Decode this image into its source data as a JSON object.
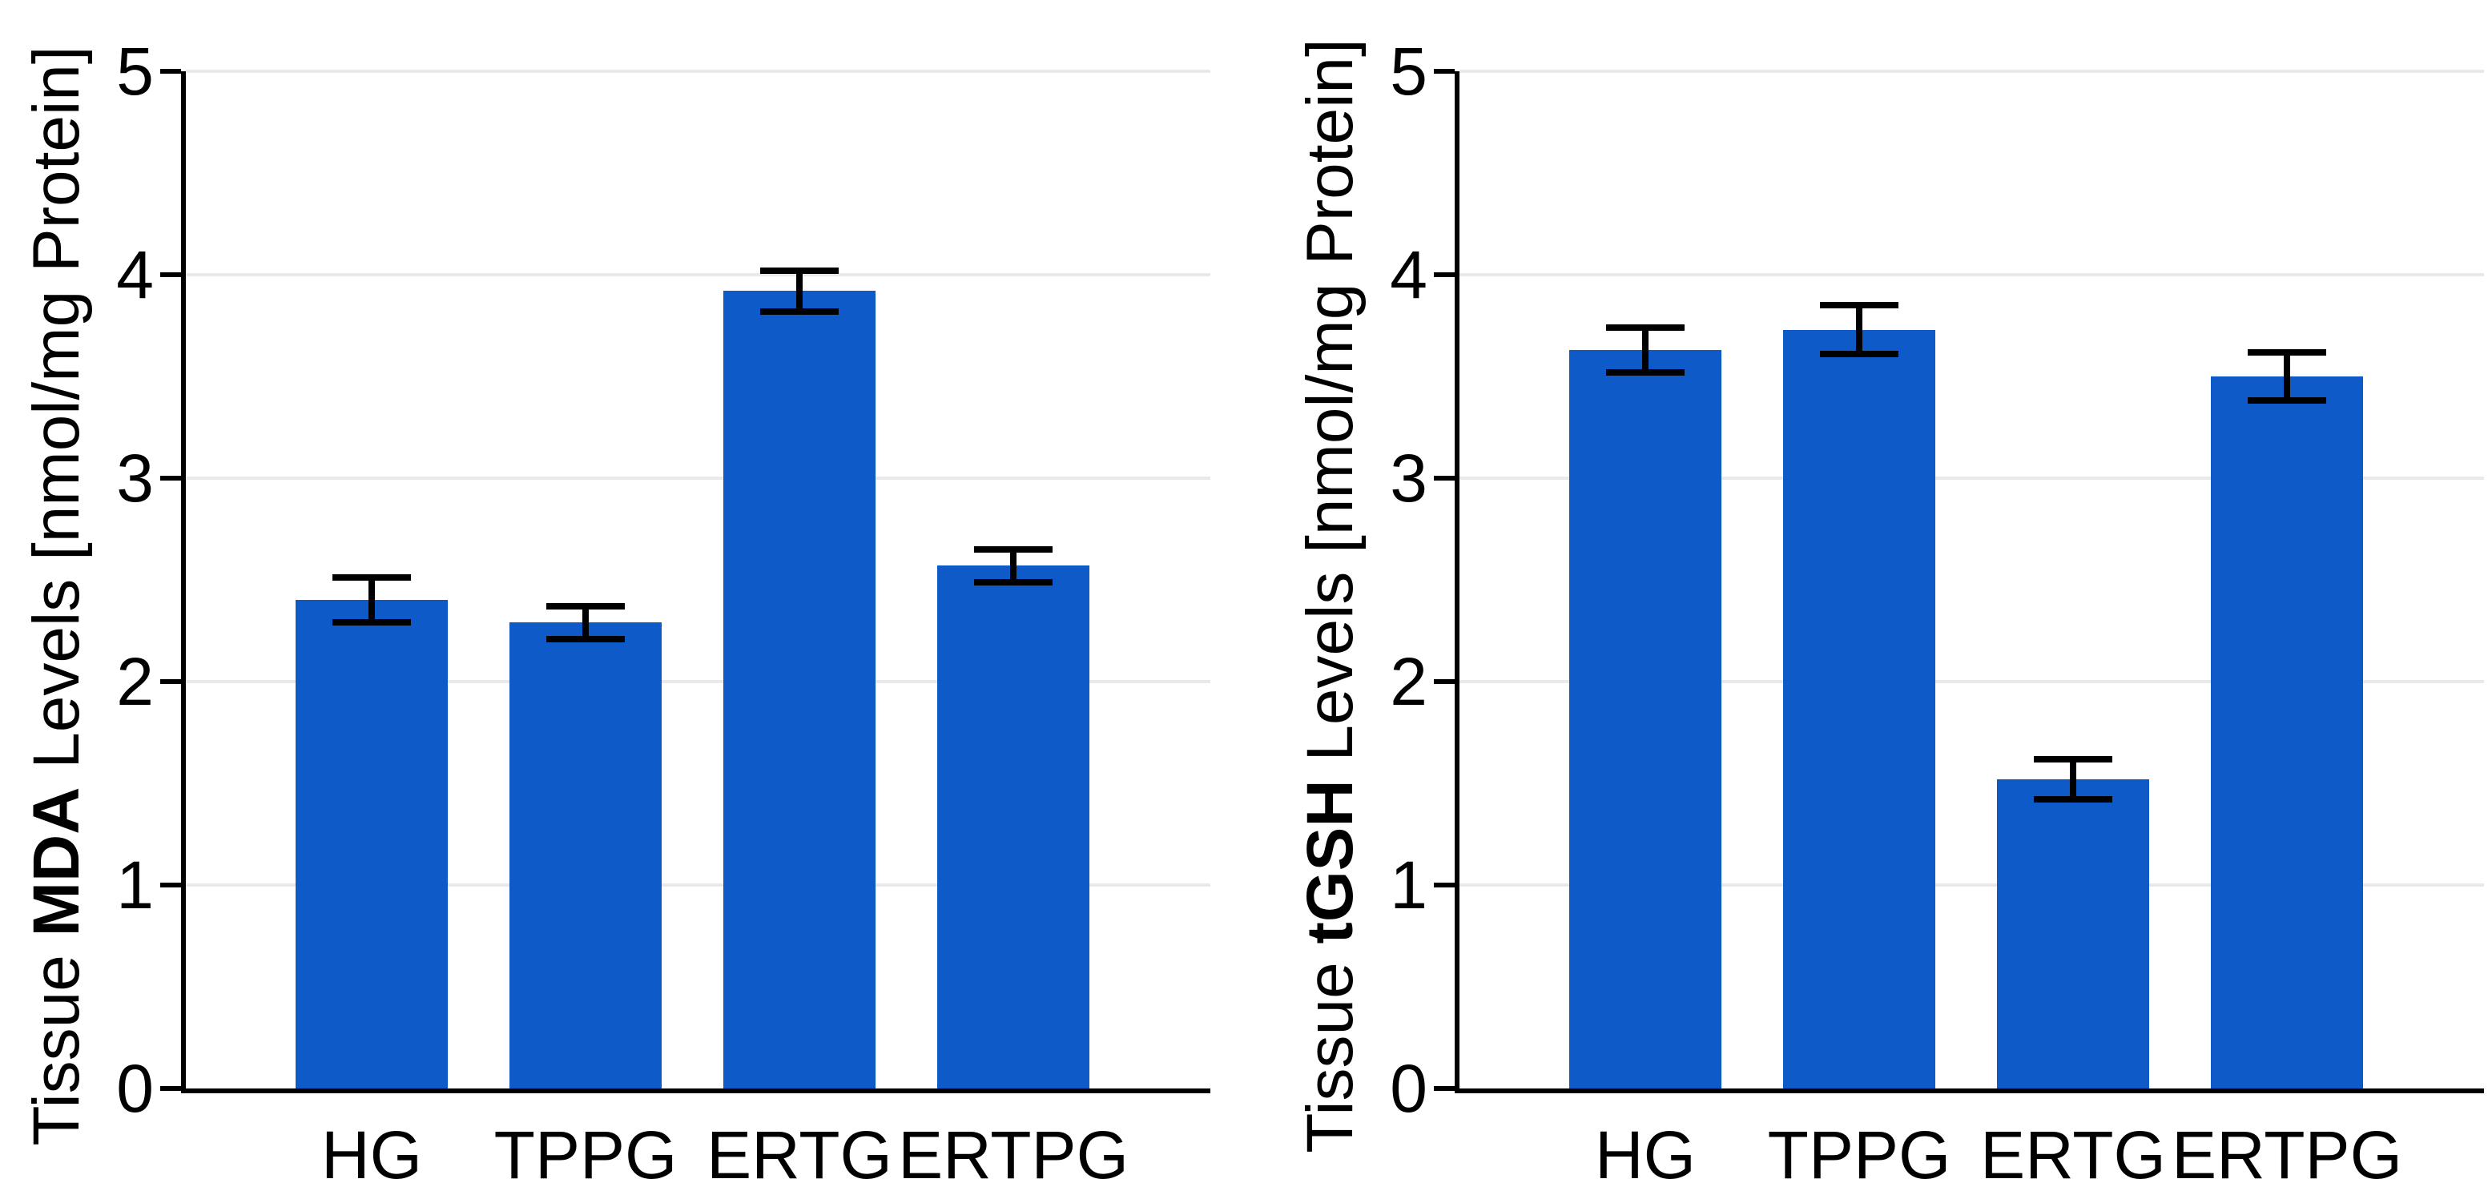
{
  "colors": {
    "bar": "#0e5ac8",
    "grid": "#e9e9e9",
    "axis": "#000000",
    "background": "#ffffff"
  },
  "chart_data": [
    {
      "type": "bar",
      "panel": "left",
      "ylabel_prefix": "Tissue ",
      "ylabel_bold": "MDA",
      "ylabel_suffix": " Levels [nmol/mg Protein]",
      "categories": [
        "HG",
        "TPPG",
        "ERTG",
        "ERTPG"
      ],
      "values": [
        2.4,
        2.29,
        3.92,
        2.57
      ],
      "errors": [
        0.11,
        0.08,
        0.1,
        0.08
      ],
      "ylim": [
        0,
        5
      ],
      "yticks": [
        0,
        1,
        2,
        3,
        4,
        5
      ],
      "grid": "on",
      "legend": "none",
      "bar_color": "#0e5ac8"
    },
    {
      "type": "bar",
      "panel": "right",
      "ylabel_prefix": "Tissue ",
      "ylabel_bold": "tGSH",
      "ylabel_suffix": " Levels [nmol/mg Protein]",
      "categories": [
        "HG",
        "TPPG",
        "ERTG",
        "ERTPG"
      ],
      "values": [
        3.63,
        3.73,
        1.52,
        3.5
      ],
      "errors": [
        0.11,
        0.12,
        0.1,
        0.12
      ],
      "ylim": [
        0,
        5
      ],
      "yticks": [
        0,
        1,
        2,
        3,
        4,
        5
      ],
      "grid": "on",
      "legend": "none",
      "bar_color": "#0e5ac8"
    }
  ]
}
